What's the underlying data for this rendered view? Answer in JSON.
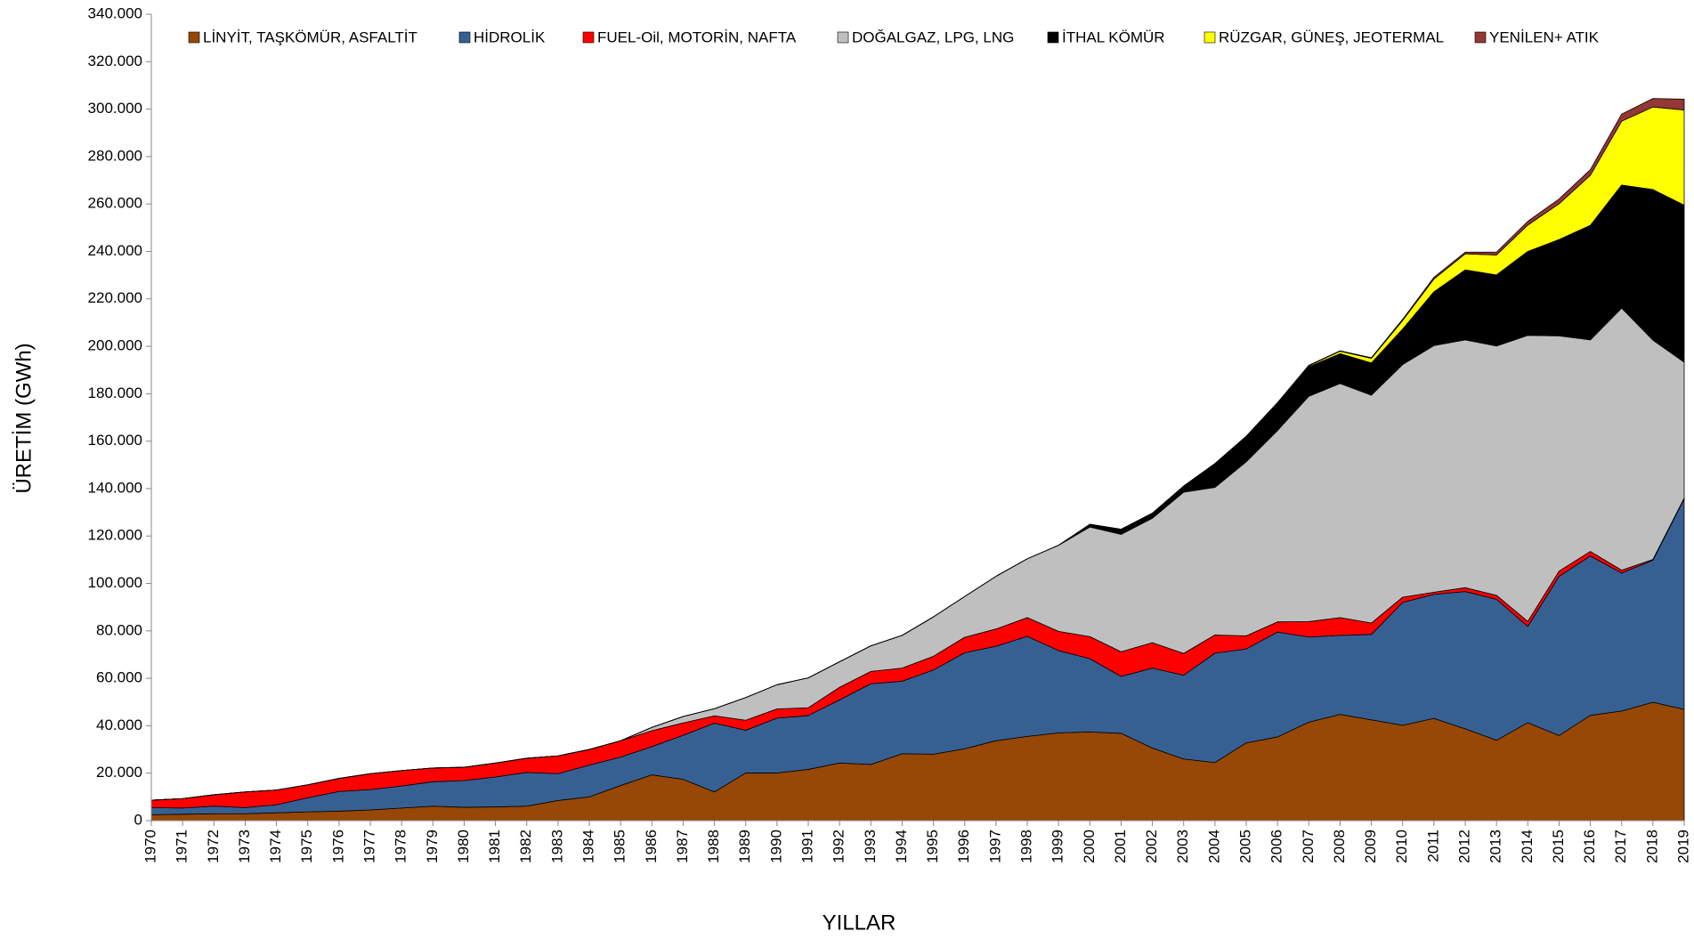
{
  "chart_data": {
    "type": "stacked_area",
    "ylabel": "ÜRETİM (GWh)",
    "xlabel": "YILLAR",
    "categories": [
      "1970",
      "1971",
      "1972",
      "1973",
      "1974",
      "1975",
      "1976",
      "1977",
      "1978",
      "1979",
      "1980",
      "1981",
      "1982",
      "1983",
      "1984",
      "1985",
      "1986",
      "1987",
      "1988",
      "1989",
      "1990",
      "1991",
      "1992",
      "1993",
      "1994",
      "1995",
      "1996",
      "1997",
      "1998",
      "1999",
      "2000",
      "2001",
      "2002",
      "2003",
      "2004",
      "2005",
      "2006",
      "2007",
      "2008",
      "2009",
      "2010",
      "2011",
      "2012",
      "2013",
      "2014",
      "2015",
      "2016",
      "2017",
      "2018",
      "2019"
    ],
    "ylim": [
      0,
      340000
    ],
    "yticks": [
      0,
      {
        "value": 20000,
        "label": "20.000"
      },
      {
        "value": 40000,
        "label": "40.000"
      },
      {
        "value": 60000,
        "label": "60.000"
      },
      {
        "value": 80000,
        "label": "80.000"
      },
      {
        "value": 100000,
        "label": "100.000"
      },
      {
        "value": 120000,
        "label": "120.000"
      },
      {
        "value": 140000,
        "label": "140.000"
      },
      {
        "value": 160000,
        "label": "160.000"
      },
      {
        "value": 180000,
        "label": "180.000"
      },
      {
        "value": 200000,
        "label": "200.000"
      },
      {
        "value": 220000,
        "label": "220.000"
      },
      {
        "value": 240000,
        "label": "240.000"
      },
      {
        "value": 260000,
        "label": "260.000"
      },
      {
        "value": 280000,
        "label": "280.000"
      },
      {
        "value": 300000,
        "label": "300.000"
      },
      {
        "value": 320000,
        "label": "320.000"
      },
      {
        "value": 340000,
        "label": "340.000"
      }
    ],
    "legend": "top",
    "series": [
      {
        "name": "LİNYİT, TAŞKÖMÜR, ASFALTİT",
        "color": "#974706",
        "values": [
          2500,
          2700,
          2900,
          2900,
          3300,
          3700,
          4000,
          4500,
          5300,
          6100,
          5600,
          5800,
          6100,
          8500,
          10000,
          14800,
          19300,
          17400,
          12100,
          20100,
          20100,
          21600,
          24300,
          23700,
          28200,
          28000,
          30300,
          33700,
          35500,
          37000,
          37400,
          36800,
          30600,
          26000,
          24500,
          32800,
          35300,
          41500,
          44800,
          42500,
          40200,
          43100,
          38700,
          33900,
          41300,
          35900,
          44400,
          46200,
          49900,
          46900
        ]
      },
      {
        "name": "HİDROLİK",
        "color": "#376092",
        "values": [
          3000,
          2600,
          3200,
          2600,
          3400,
          5900,
          8300,
          8600,
          9300,
          10300,
          11300,
          12600,
          14200,
          11300,
          13400,
          12000,
          11900,
          18600,
          29000,
          18000,
          23100,
          22700,
          26600,
          34000,
          30600,
          35500,
          40500,
          39800,
          42200,
          34700,
          30900,
          24000,
          33700,
          35300,
          46100,
          39600,
          44200,
          35900,
          33300,
          36000,
          51800,
          52300,
          57900,
          59400,
          40600,
          67100,
          67200,
          58200,
          59900,
          88800
        ]
      },
      {
        "name": "FUEL-Oil, MOTORİN, NAFTA",
        "color": "#ff0000",
        "values": [
          3100,
          4000,
          4800,
          6600,
          6200,
          5500,
          5500,
          6700,
          6500,
          5800,
          5600,
          5900,
          6000,
          7500,
          6600,
          6900,
          6700,
          5200,
          3100,
          4200,
          3900,
          3300,
          5300,
          5200,
          5500,
          5800,
          6500,
          7300,
          7900,
          8100,
          9300,
          10400,
          10700,
          9200,
          7700,
          5500,
          4300,
          6500,
          7500,
          4800,
          2200,
          900,
          1600,
          1700,
          2100,
          2200,
          1900,
          1200,
          300,
          300
        ]
      },
      {
        "name": "DOĞALGAZ, LPG, LNG",
        "color": "#bfbfbf",
        "values": [
          0,
          0,
          0,
          0,
          0,
          0,
          0,
          0,
          0,
          0,
          0,
          0,
          0,
          0,
          0,
          0,
          1400,
          2700,
          3000,
          9600,
          10200,
          12600,
          10800,
          10800,
          13800,
          16600,
          17200,
          22200,
          24800,
          36300,
          46200,
          49500,
          52500,
          68000,
          62200,
          73400,
          80700,
          95000,
          98700,
          96100,
          98100,
          104000,
          104500,
          105100,
          120600,
          99200,
          89200,
          110500,
          92500,
          57300
        ]
      },
      {
        "name": "İTHAL KÖMÜR",
        "color": "#000000",
        "values": [
          0,
          0,
          0,
          0,
          0,
          0,
          0,
          0,
          0,
          0,
          0,
          0,
          0,
          0,
          0,
          0,
          0,
          0,
          0,
          0,
          0,
          0,
          0,
          0,
          0,
          0,
          0,
          0,
          0,
          0,
          1000,
          2000,
          2000,
          2500,
          10000,
          10700,
          11500,
          12500,
          12600,
          13600,
          15000,
          22700,
          29500,
          30000,
          35400,
          40600,
          48300,
          51900,
          63500,
          66200
        ]
      },
      {
        "name": "RÜZGAR, GÜNEŞ, JEOTERMAL",
        "color": "#ffff00",
        "values": [
          0,
          0,
          0,
          0,
          0,
          0,
          0,
          0,
          0,
          0,
          0,
          0,
          0,
          0,
          0,
          0,
          0,
          0,
          0,
          0,
          0,
          0,
          0,
          0,
          0,
          0,
          0,
          0,
          0,
          0,
          0,
          0,
          0,
          0,
          0,
          0,
          100,
          400,
          1000,
          1900,
          3600,
          5400,
          6800,
          8400,
          11100,
          15100,
          21100,
          26900,
          34800,
          40100
        ]
      },
      {
        "name": "YENİLEN+ ATIK",
        "color": "#953735",
        "values": [
          0,
          0,
          0,
          0,
          0,
          0,
          0,
          0,
          0,
          0,
          0,
          0,
          0,
          0,
          0,
          0,
          0,
          0,
          0,
          0,
          0,
          0,
          0,
          0,
          0,
          0,
          0,
          0,
          0,
          0,
          200,
          200,
          200,
          100,
          100,
          100,
          200,
          200,
          200,
          300,
          500,
          700,
          700,
          1200,
          1600,
          2000,
          2400,
          3000,
          3600,
          4600
        ]
      }
    ]
  }
}
